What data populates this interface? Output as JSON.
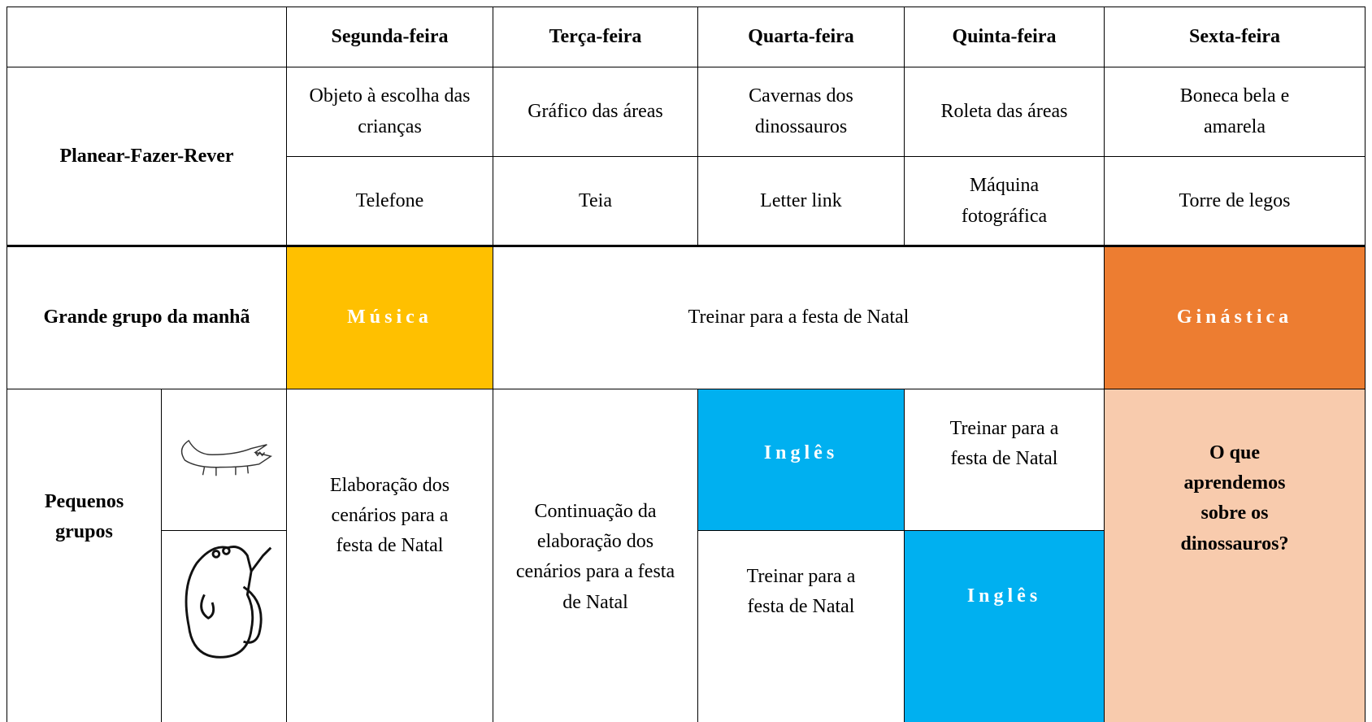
{
  "days": [
    "Segunda-feira",
    "Terça-feira",
    "Quarta-feira",
    "Quinta-feira",
    "Sexta-feira"
  ],
  "planear": {
    "label": "Planear-Fazer-Rever",
    "rows": [
      [
        "Objeto à escolha das crianças",
        "Gráfico das áreas",
        "Cavernas dos dinossauros",
        "Roleta das áreas",
        "Boneca bela e amarela"
      ],
      [
        "Telefone",
        "Teia",
        "Letter link",
        "Máquina fotográfica",
        "Torre de legos"
      ]
    ]
  },
  "grande_grupo": {
    "label": "Grande grupo da manhã",
    "cells": [
      "Música",
      "Treinar para a festa de Natal",
      "Ginástica"
    ]
  },
  "pequenos_grupos": {
    "label": "Pequenos grupos",
    "segunda": "Elaboração dos cenários para a festa de Natal",
    "terca": "Continuação da elaboração dos cenários para a festa de Natal",
    "quarta": [
      "Inglês",
      "Treinar para a festa de Natal"
    ],
    "quinta": [
      "Treinar para a festa de Natal",
      "Inglês"
    ],
    "sexta": "O que aprendemos sobre os dinossauros?"
  }
}
